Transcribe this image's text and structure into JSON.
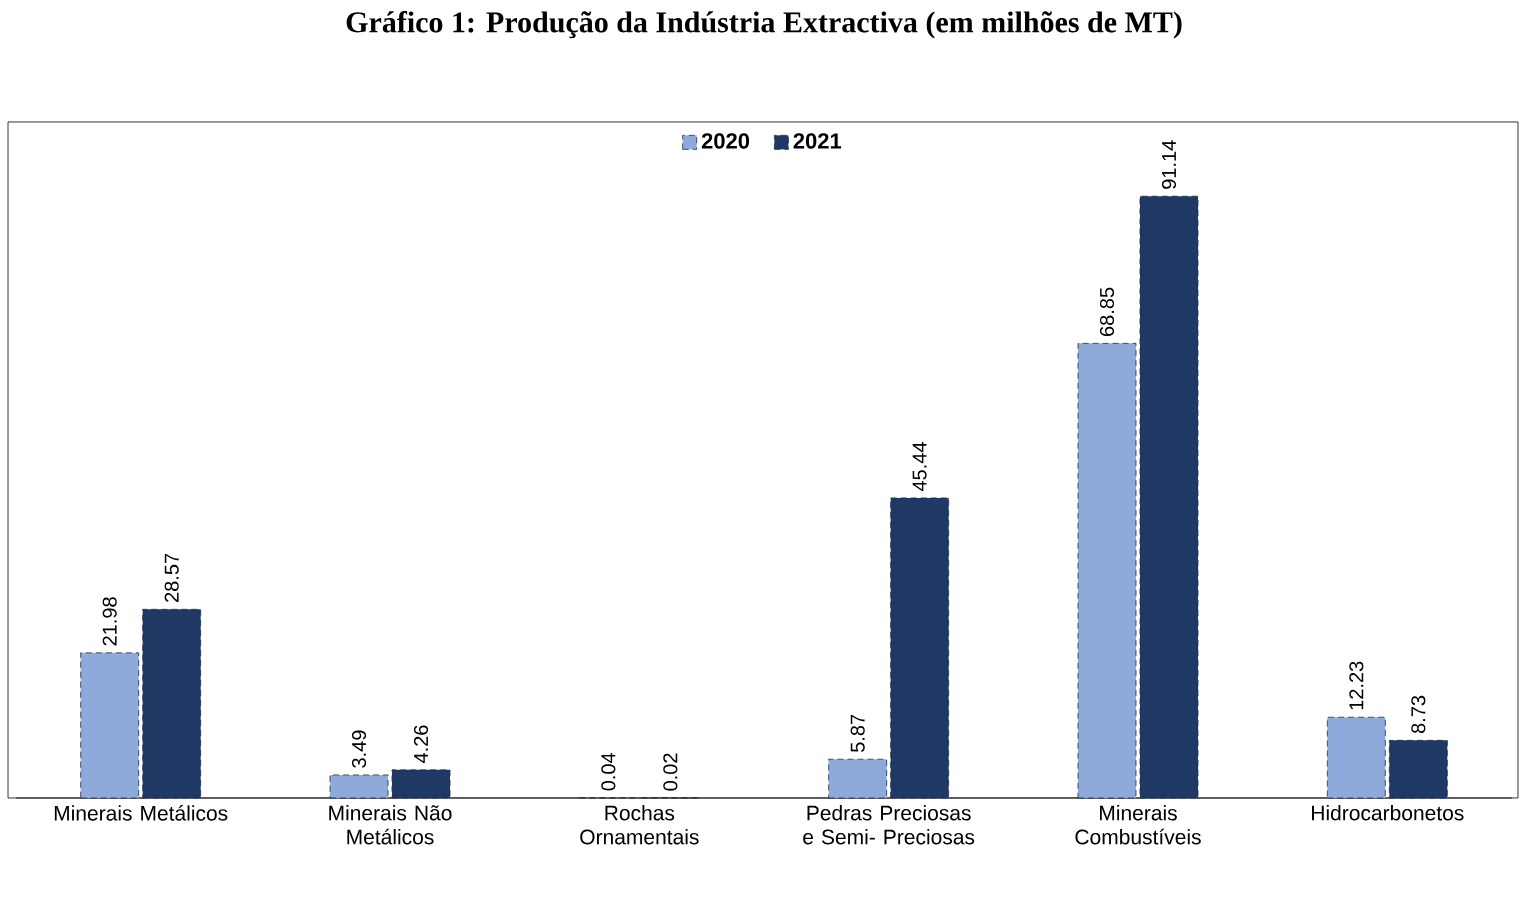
{
  "chart_data": {
    "type": "bar",
    "title": "Gráfico 1: Produção da Indústria Extractiva (em milhões de MT)",
    "categories": [
      "Minerais Metálicos",
      "Minerais Não Metálicos",
      "Rochas Ornamentais",
      "Pedras Preciosas e Semi- Preciosas",
      "Minerais Combustíveis",
      "Hidrocarbonetos"
    ],
    "series": [
      {
        "name": "2020",
        "color": "#8eaadb",
        "values": [
          21.98,
          3.49,
          0.04,
          5.87,
          68.85,
          12.23
        ]
      },
      {
        "name": "2021",
        "color": "#1f3864",
        "values": [
          28.57,
          4.26,
          0.02,
          45.44,
          91.14,
          8.73
        ]
      }
    ],
    "data_labels": true,
    "legend": "top",
    "tick_labels": "x"
  }
}
